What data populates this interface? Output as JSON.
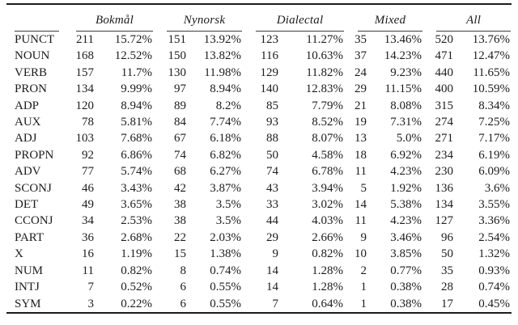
{
  "colors": {
    "background": "#ffffff",
    "text": "#1c1c1c",
    "rule_heavy": "#1c1c1c",
    "rule_light": "#3d3d3d"
  },
  "table": {
    "header_groups": [
      "Bokmål",
      "Nynorsk",
      "Dialectal",
      "Mixed",
      "All"
    ],
    "rows": [
      {
        "tag": "PUNCT",
        "cells": [
          "211",
          "15.72%",
          "151",
          "13.92%",
          "123",
          "11.27%",
          "35",
          "13.46%",
          "520",
          "13.76%"
        ]
      },
      {
        "tag": "NOUN",
        "cells": [
          "168",
          "12.52%",
          "150",
          "13.82%",
          "116",
          "10.63%",
          "37",
          "14.23%",
          "471",
          "12.47%"
        ]
      },
      {
        "tag": "VERB",
        "cells": [
          "157",
          "11.7%",
          "130",
          "11.98%",
          "129",
          "11.82%",
          "24",
          "9.23%",
          "440",
          "11.65%"
        ]
      },
      {
        "tag": "PRON",
        "cells": [
          "134",
          "9.99%",
          "97",
          "8.94%",
          "140",
          "12.83%",
          "29",
          "11.15%",
          "400",
          "10.59%"
        ]
      },
      {
        "tag": "ADP",
        "cells": [
          "120",
          "8.94%",
          "89",
          "8.2%",
          "85",
          "7.79%",
          "21",
          "8.08%",
          "315",
          "8.34%"
        ]
      },
      {
        "tag": "AUX",
        "cells": [
          "78",
          "5.81%",
          "84",
          "7.74%",
          "93",
          "8.52%",
          "19",
          "7.31%",
          "274",
          "7.25%"
        ]
      },
      {
        "tag": "ADJ",
        "cells": [
          "103",
          "7.68%",
          "67",
          "6.18%",
          "88",
          "8.07%",
          "13",
          "5.0%",
          "271",
          "7.17%"
        ]
      },
      {
        "tag": "PROPN",
        "cells": [
          "92",
          "6.86%",
          "74",
          "6.82%",
          "50",
          "4.58%",
          "18",
          "6.92%",
          "234",
          "6.19%"
        ]
      },
      {
        "tag": "ADV",
        "cells": [
          "77",
          "5.74%",
          "68",
          "6.27%",
          "74",
          "6.78%",
          "11",
          "4.23%",
          "230",
          "6.09%"
        ]
      },
      {
        "tag": "SCONJ",
        "cells": [
          "46",
          "3.43%",
          "42",
          "3.87%",
          "43",
          "3.94%",
          "5",
          "1.92%",
          "136",
          "3.6%"
        ]
      },
      {
        "tag": "DET",
        "cells": [
          "49",
          "3.65%",
          "38",
          "3.5%",
          "33",
          "3.02%",
          "14",
          "5.38%",
          "134",
          "3.55%"
        ]
      },
      {
        "tag": "CCONJ",
        "cells": [
          "34",
          "2.53%",
          "38",
          "3.5%",
          "44",
          "4.03%",
          "11",
          "4.23%",
          "127",
          "3.36%"
        ]
      },
      {
        "tag": "PART",
        "cells": [
          "36",
          "2.68%",
          "22",
          "2.03%",
          "29",
          "2.66%",
          "9",
          "3.46%",
          "96",
          "2.54%"
        ]
      },
      {
        "tag": "X",
        "cells": [
          "16",
          "1.19%",
          "15",
          "1.38%",
          "9",
          "0.82%",
          "10",
          "3.85%",
          "50",
          "1.32%"
        ]
      },
      {
        "tag": "NUM",
        "cells": [
          "11",
          "0.82%",
          "8",
          "0.74%",
          "14",
          "1.28%",
          "2",
          "0.77%",
          "35",
          "0.93%"
        ]
      },
      {
        "tag": "INTJ",
        "cells": [
          "7",
          "0.52%",
          "6",
          "0.55%",
          "14",
          "1.28%",
          "1",
          "0.38%",
          "28",
          "0.74%"
        ]
      },
      {
        "tag": "SYM",
        "cells": [
          "3",
          "0.22%",
          "6",
          "0.55%",
          "7",
          "0.64%",
          "1",
          "0.38%",
          "17",
          "0.45%"
        ]
      }
    ]
  }
}
